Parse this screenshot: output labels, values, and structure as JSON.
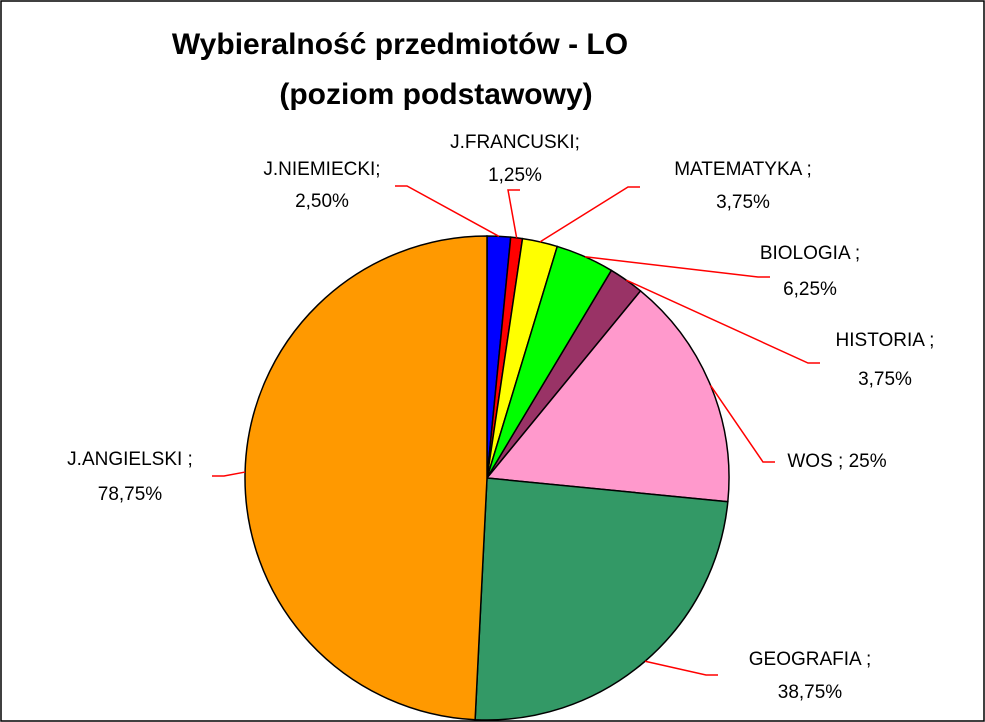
{
  "chart_data": {
    "type": "pie",
    "title": "Wybieralność przedmiotów - LO",
    "subtitle": "(poziom podstawowy)",
    "categories": [
      "J.NIEMIECKI;",
      "J.FRANCUSKI;",
      "MATEMATYKA ;",
      "BIOLOGIA ;",
      "HISTORIA ;",
      "WOS ;",
      "GEOGRAFIA ;",
      "J.ANGIELSKI ;"
    ],
    "values": [
      2.5,
      1.25,
      3.75,
      6.25,
      3.75,
      25,
      38.75,
      78.75
    ],
    "value_labels": [
      "2,50%",
      "1,25%",
      "3,75%",
      "6,25%",
      "3,75%",
      "25%",
      "38,75%",
      "78,75%"
    ],
    "colors": [
      "#0000ff",
      "#ff0000",
      "#ffff00",
      "#00ff00",
      "#993366",
      "#ff99cc",
      "#339966",
      "#ff9900"
    ]
  }
}
